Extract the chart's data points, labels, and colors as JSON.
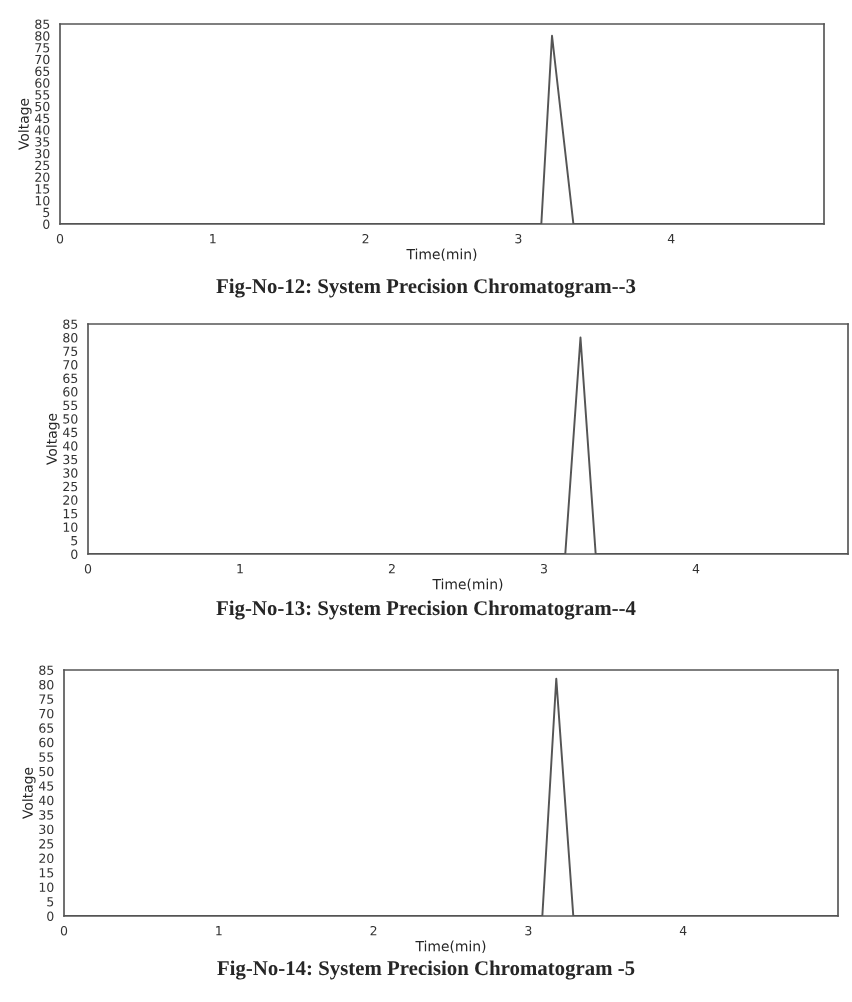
{
  "chart_data": [
    {
      "type": "line",
      "title": "Fig-No-12: System Precision Chromatogram--3",
      "xlabel": "Time(min)",
      "ylabel": "Voltage",
      "xlim": [
        0,
        5
      ],
      "xticks": [
        0,
        1,
        2,
        3,
        4
      ],
      "ylim": [
        0,
        85
      ],
      "yticks": [
        0,
        5,
        10,
        15,
        20,
        25,
        30,
        35,
        40,
        45,
        50,
        55,
        60,
        65,
        70,
        75,
        80,
        85
      ],
      "grid": false,
      "legend": false,
      "series": [
        {
          "color": "#555555",
          "x": [
            0,
            3.15,
            3.22,
            3.36,
            5
          ],
          "values": [
            0,
            0,
            80,
            0,
            0
          ]
        }
      ]
    },
    {
      "type": "line",
      "title": "Fig-No-13: System Precision Chromatogram--4",
      "xlabel": "Time(min)",
      "ylabel": "Voltage",
      "xlim": [
        0,
        5
      ],
      "xticks": [
        0,
        1,
        2,
        3,
        4
      ],
      "ylim": [
        0,
        85
      ],
      "yticks": [
        0,
        5,
        10,
        15,
        20,
        25,
        30,
        35,
        40,
        45,
        50,
        55,
        60,
        65,
        70,
        75,
        80,
        85
      ],
      "grid": false,
      "legend": false,
      "series": [
        {
          "color": "#555555",
          "x": [
            0,
            3.14,
            3.24,
            3.34,
            5
          ],
          "values": [
            0,
            0,
            80,
            0,
            0
          ]
        }
      ]
    },
    {
      "type": "line",
      "title": "Fig-No-14: System Precision Chromatogram -5",
      "xlabel": "Time(min)",
      "ylabel": "Voltage",
      "xlim": [
        0,
        5
      ],
      "xticks": [
        0,
        1,
        2,
        3,
        4
      ],
      "ylim": [
        0,
        85
      ],
      "yticks": [
        0,
        5,
        10,
        15,
        20,
        25,
        30,
        35,
        40,
        45,
        50,
        55,
        60,
        65,
        70,
        75,
        80,
        85
      ],
      "grid": false,
      "legend": false,
      "series": [
        {
          "color": "#555555",
          "x": [
            0,
            3.09,
            3.18,
            3.29,
            5
          ],
          "values": [
            0,
            0,
            82,
            0,
            0
          ]
        }
      ]
    }
  ]
}
